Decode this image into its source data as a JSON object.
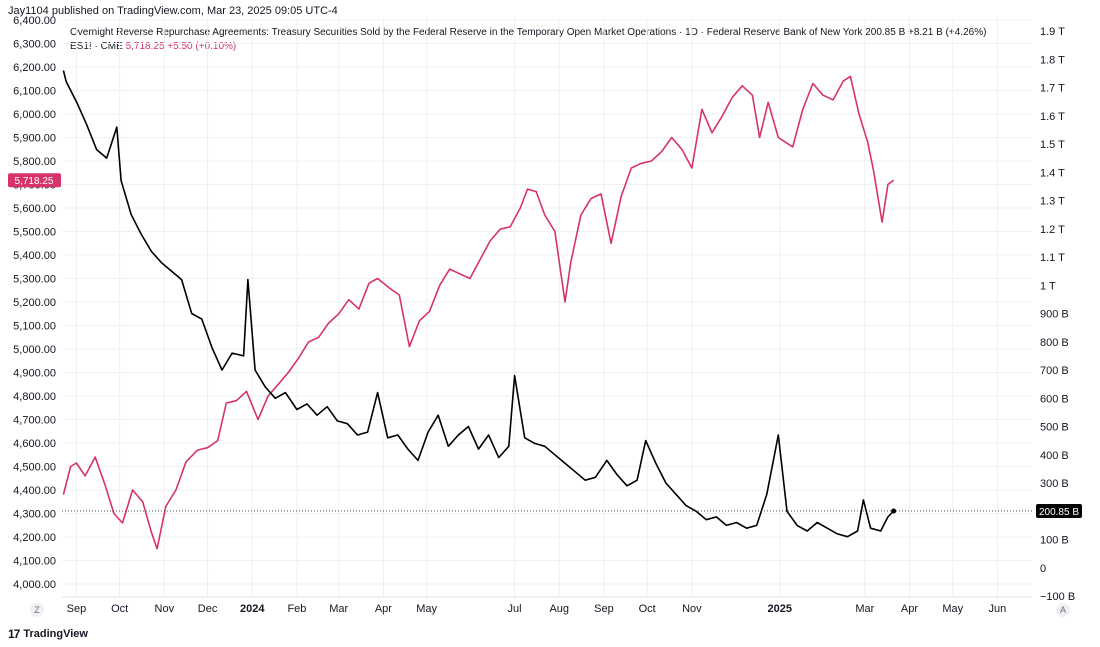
{
  "header": {
    "published": "Jay1104 published on TradingView.com, Mar 23, 2025 09:05 UTC-4",
    "series1_title": "Overnight Reverse Repurchase Agreements: Treasury Securities Sold by the Federal Reserve in the Temporary Open Market Operations · 1D · Federal Reserve Bank of New York",
    "series1_value": "200.85 B",
    "series1_change": "+8.21 B (+4.26%)",
    "series2_symbol": "ES1! · CME",
    "series2_value": "5,718.25",
    "series2_change": "+5.50 (+0.10%)"
  },
  "footer": {
    "logo_mark": "17",
    "logo_text": "TradingView",
    "corner_left": "Z",
    "corner_right": "A"
  },
  "colors": {
    "es_line": "#d6336c",
    "rrp_line": "#000000",
    "grid": "#eef0f3",
    "axis_text": "#131722"
  },
  "chart_data": {
    "type": "line",
    "x_axis": {
      "ticks": [
        "Sep",
        "Oct",
        "Nov",
        "Dec",
        "2024",
        "Feb",
        "Mar",
        "Apr",
        "May",
        "Jul",
        "Aug",
        "Sep",
        "Oct",
        "Nov",
        "2025",
        "Mar",
        "Apr",
        "May",
        "Jun"
      ]
    },
    "left_axis": {
      "ticks": [
        "4,000.00",
        "4,100.00",
        "4,200.00",
        "4,300.00",
        "4,400.00",
        "4,500.00",
        "4,600.00",
        "4,700.00",
        "4,800.00",
        "4,900.00",
        "5,000.00",
        "5,100.00",
        "5,200.00",
        "5,300.00",
        "5,400.00",
        "5,500.00",
        "5,600.00",
        "5,700.00",
        "5,800.00",
        "5,900.00",
        "6,000.00",
        "6,100.00",
        "6,200.00",
        "6,300.00",
        "6,400.00"
      ],
      "range": [
        4000,
        6400
      ]
    },
    "right_axis": {
      "ticks": [
        "−100 B",
        "0",
        "100 B",
        "200 B",
        "300 B",
        "400 B",
        "500 B",
        "600 B",
        "700 B",
        "800 B",
        "900 B",
        "1 T",
        "1.1 T",
        "1.2 T",
        "1.3 T",
        "1.4 T",
        "1.5 T",
        "1.6 T",
        "1.7 T",
        "1.8 T",
        "1.9 T"
      ],
      "range_billions": [
        -100,
        1900
      ]
    },
    "last_labels": {
      "es": "5,718.25",
      "rrp": "200.85 B"
    },
    "series": [
      {
        "name": "ES1! · CME",
        "axis": "left",
        "points": [
          [
            "Aug 23 2023",
            4380
          ],
          [
            "Aug 28 2023",
            4500
          ],
          [
            "Sep 1 2023",
            4515
          ],
          [
            "Sep 7 2023",
            4460
          ],
          [
            "Sep 14 2023",
            4540
          ],
          [
            "Sep 21 2023",
            4420
          ],
          [
            "Sep 27 2023",
            4300
          ],
          [
            "Oct 3 2023",
            4260
          ],
          [
            "Oct 10 2023",
            4400
          ],
          [
            "Oct 17 2023",
            4350
          ],
          [
            "Oct 23 2023",
            4220
          ],
          [
            "Oct 27 2023",
            4150
          ],
          [
            "Nov 2 2023",
            4330
          ],
          [
            "Nov 9 2023",
            4400
          ],
          [
            "Nov 16 2023",
            4520
          ],
          [
            "Nov 24 2023",
            4570
          ],
          [
            "Dec 1 2023",
            4580
          ],
          [
            "Dec 8 2023",
            4610
          ],
          [
            "Dec 14 2023",
            4770
          ],
          [
            "Dec 21 2023",
            4780
          ],
          [
            "Dec 28 2023",
            4820
          ],
          [
            "Jan 5 2024",
            4700
          ],
          [
            "Jan 12 2024",
            4800
          ],
          [
            "Jan 19 2024",
            4850
          ],
          [
            "Jan 26 2024",
            4900
          ],
          [
            "Feb 2 2024",
            4960
          ],
          [
            "Feb 9 2024",
            5030
          ],
          [
            "Feb 16 2024",
            5050
          ],
          [
            "Feb 23 2024",
            5110
          ],
          [
            "Mar 1 2024",
            5150
          ],
          [
            "Mar 8 2024",
            5210
          ],
          [
            "Mar 15 2024",
            5170
          ],
          [
            "Mar 22 2024",
            5280
          ],
          [
            "Mar 28 2024",
            5300
          ],
          [
            "Apr 5 2024",
            5260
          ],
          [
            "Apr 12 2024",
            5230
          ],
          [
            "Apr 19 2024",
            5010
          ],
          [
            "Apr 26 2024",
            5120
          ],
          [
            "May 3 2024",
            5160
          ],
          [
            "May 10 2024",
            5270
          ],
          [
            "May 17 2024",
            5340
          ],
          [
            "May 24 2024",
            5320
          ],
          [
            "May 31 2024",
            5300
          ],
          [
            "Jun 7 2024",
            5380
          ],
          [
            "Jun 14 2024",
            5460
          ],
          [
            "Jun 21 2024",
            5510
          ],
          [
            "Jun 28 2024",
            5520
          ],
          [
            "Jul 5 2024",
            5600
          ],
          [
            "Jul 10 2024",
            5680
          ],
          [
            "Jul 16 2024",
            5670
          ],
          [
            "Jul 22 2024",
            5570
          ],
          [
            "Jul 29 2024",
            5500
          ],
          [
            "Aug 5 2024",
            5200
          ],
          [
            "Aug 9 2024",
            5370
          ],
          [
            "Aug 16 2024",
            5570
          ],
          [
            "Aug 23 2024",
            5640
          ],
          [
            "Aug 30 2024",
            5660
          ],
          [
            "Sep 6 2024",
            5450
          ],
          [
            "Sep 13 2024",
            5650
          ],
          [
            "Sep 20 2024",
            5770
          ],
          [
            "Sep 27 2024",
            5790
          ],
          [
            "Oct 4 2024",
            5800
          ],
          [
            "Oct 11 2024",
            5840
          ],
          [
            "Oct 18 2024",
            5900
          ],
          [
            "Oct 25 2024",
            5850
          ],
          [
            "Nov 1 2024",
            5770
          ],
          [
            "Nov 8 2024",
            6020
          ],
          [
            "Nov 15 2024",
            5920
          ],
          [
            "Nov 22 2024",
            5990
          ],
          [
            "Nov 29 2024",
            6070
          ],
          [
            "Dec 6 2024",
            6120
          ],
          [
            "Dec 13 2024",
            6080
          ],
          [
            "Dec 18 2024",
            5900
          ],
          [
            "Dec 24 2024",
            6050
          ],
          [
            "Dec 31 2024",
            5900
          ],
          [
            "Jan 10 2025",
            5860
          ],
          [
            "Jan 17 2025",
            6020
          ],
          [
            "Jan 24 2025",
            6130
          ],
          [
            "Jan 31 2025",
            6080
          ],
          [
            "Feb 7 2025",
            6060
          ],
          [
            "Feb 14 2025",
            6140
          ],
          [
            "Feb 19 2025",
            6160
          ],
          [
            "Feb 25 2025",
            6000
          ],
          [
            "Mar 3 2025",
            5880
          ],
          [
            "Mar 7 2025",
            5760
          ],
          [
            "Mar 13 2025",
            5540
          ],
          [
            "Mar 17 2025",
            5700
          ],
          [
            "Mar 21 2025",
            5718.25
          ]
        ]
      },
      {
        "name": "Overnight Reverse Repurchase Agreements",
        "axis": "right",
        "points": [
          [
            "Aug 23 2023",
            1760
          ],
          [
            "Aug 25 2023",
            1720
          ],
          [
            "Sep 1 2023",
            1650
          ],
          [
            "Sep 8 2023",
            1570
          ],
          [
            "Sep 15 2023",
            1480
          ],
          [
            "Sep 22 2023",
            1450
          ],
          [
            "Sep 29 2023",
            1560
          ],
          [
            "Oct 2 2023",
            1370
          ],
          [
            "Oct 9 2023",
            1250
          ],
          [
            "Oct 16 2023",
            1180
          ],
          [
            "Oct 23 2023",
            1120
          ],
          [
            "Oct 30 2023",
            1080
          ],
          [
            "Nov 6 2023",
            1050
          ],
          [
            "Nov 13 2023",
            1020
          ],
          [
            "Nov 20 2023",
            900
          ],
          [
            "Nov 27 2023",
            880
          ],
          [
            "Dec 4 2023",
            780
          ],
          [
            "Dec 11 2023",
            700
          ],
          [
            "Dec 18 2023",
            760
          ],
          [
            "Dec 26 2023",
            750
          ],
          [
            "Dec 29 2023",
            1020
          ],
          [
            "Jan 3 2024",
            700
          ],
          [
            "Jan 10 2024",
            640
          ],
          [
            "Jan 17 2024",
            600
          ],
          [
            "Jan 24 2024",
            620
          ],
          [
            "Feb 1 2024",
            560
          ],
          [
            "Feb 8 2024",
            580
          ],
          [
            "Feb 15 2024",
            540
          ],
          [
            "Feb 22 2024",
            570
          ],
          [
            "Feb 29 2024",
            520
          ],
          [
            "Mar 7 2024",
            510
          ],
          [
            "Mar 14 2024",
            470
          ],
          [
            "Mar 21 2024",
            480
          ],
          [
            "Mar 28 2024",
            620
          ],
          [
            "Apr 4 2024",
            460
          ],
          [
            "Apr 11 2024",
            470
          ],
          [
            "Apr 18 2024",
            420
          ],
          [
            "Apr 25 2024",
            380
          ],
          [
            "May 2 2024",
            480
          ],
          [
            "May 9 2024",
            540
          ],
          [
            "May 16 2024",
            430
          ],
          [
            "May 23 2024",
            470
          ],
          [
            "May 30 2024",
            500
          ],
          [
            "Jun 6 2024",
            420
          ],
          [
            "Jun 13 2024",
            470
          ],
          [
            "Jun 20 2024",
            390
          ],
          [
            "Jun 27 2024",
            430
          ],
          [
            "Jul 1 2024",
            680
          ],
          [
            "Jul 8 2024",
            460
          ],
          [
            "Jul 15 2024",
            440
          ],
          [
            "Jul 22 2024",
            430
          ],
          [
            "Jul 29 2024",
            400
          ],
          [
            "Aug 5 2024",
            370
          ],
          [
            "Aug 12 2024",
            340
          ],
          [
            "Aug 19 2024",
            310
          ],
          [
            "Aug 26 2024",
            320
          ],
          [
            "Sep 3 2024",
            380
          ],
          [
            "Sep 10 2024",
            330
          ],
          [
            "Sep 17 2024",
            290
          ],
          [
            "Sep 24 2024",
            310
          ],
          [
            "Sep 30 2024",
            450
          ],
          [
            "Oct 7 2024",
            370
          ],
          [
            "Oct 14 2024",
            300
          ],
          [
            "Oct 21 2024",
            260
          ],
          [
            "Oct 28 2024",
            220
          ],
          [
            "Nov 4 2024",
            200
          ],
          [
            "Nov 11 2024",
            170
          ],
          [
            "Nov 18 2024",
            180
          ],
          [
            "Nov 25 2024",
            150
          ],
          [
            "Dec 2 2024",
            160
          ],
          [
            "Dec 9 2024",
            140
          ],
          [
            "Dec 16 2024",
            150
          ],
          [
            "Dec 23 2024",
            260
          ],
          [
            "Dec 31 2024",
            470
          ],
          [
            "Jan 6 2025",
            200
          ],
          [
            "Jan 13 2025",
            150
          ],
          [
            "Jan 20 2025",
            130
          ],
          [
            "Jan 27 2025",
            160
          ],
          [
            "Feb 3 2025",
            140
          ],
          [
            "Feb 10 2025",
            120
          ],
          [
            "Feb 17 2025",
            110
          ],
          [
            "Feb 24 2025",
            130
          ],
          [
            "Feb 28 2025",
            240
          ],
          [
            "Mar 5 2025",
            140
          ],
          [
            "Mar 12 2025",
            130
          ],
          [
            "Mar 17 2025",
            180
          ],
          [
            "Mar 21 2025",
            200.85
          ]
        ]
      }
    ]
  }
}
